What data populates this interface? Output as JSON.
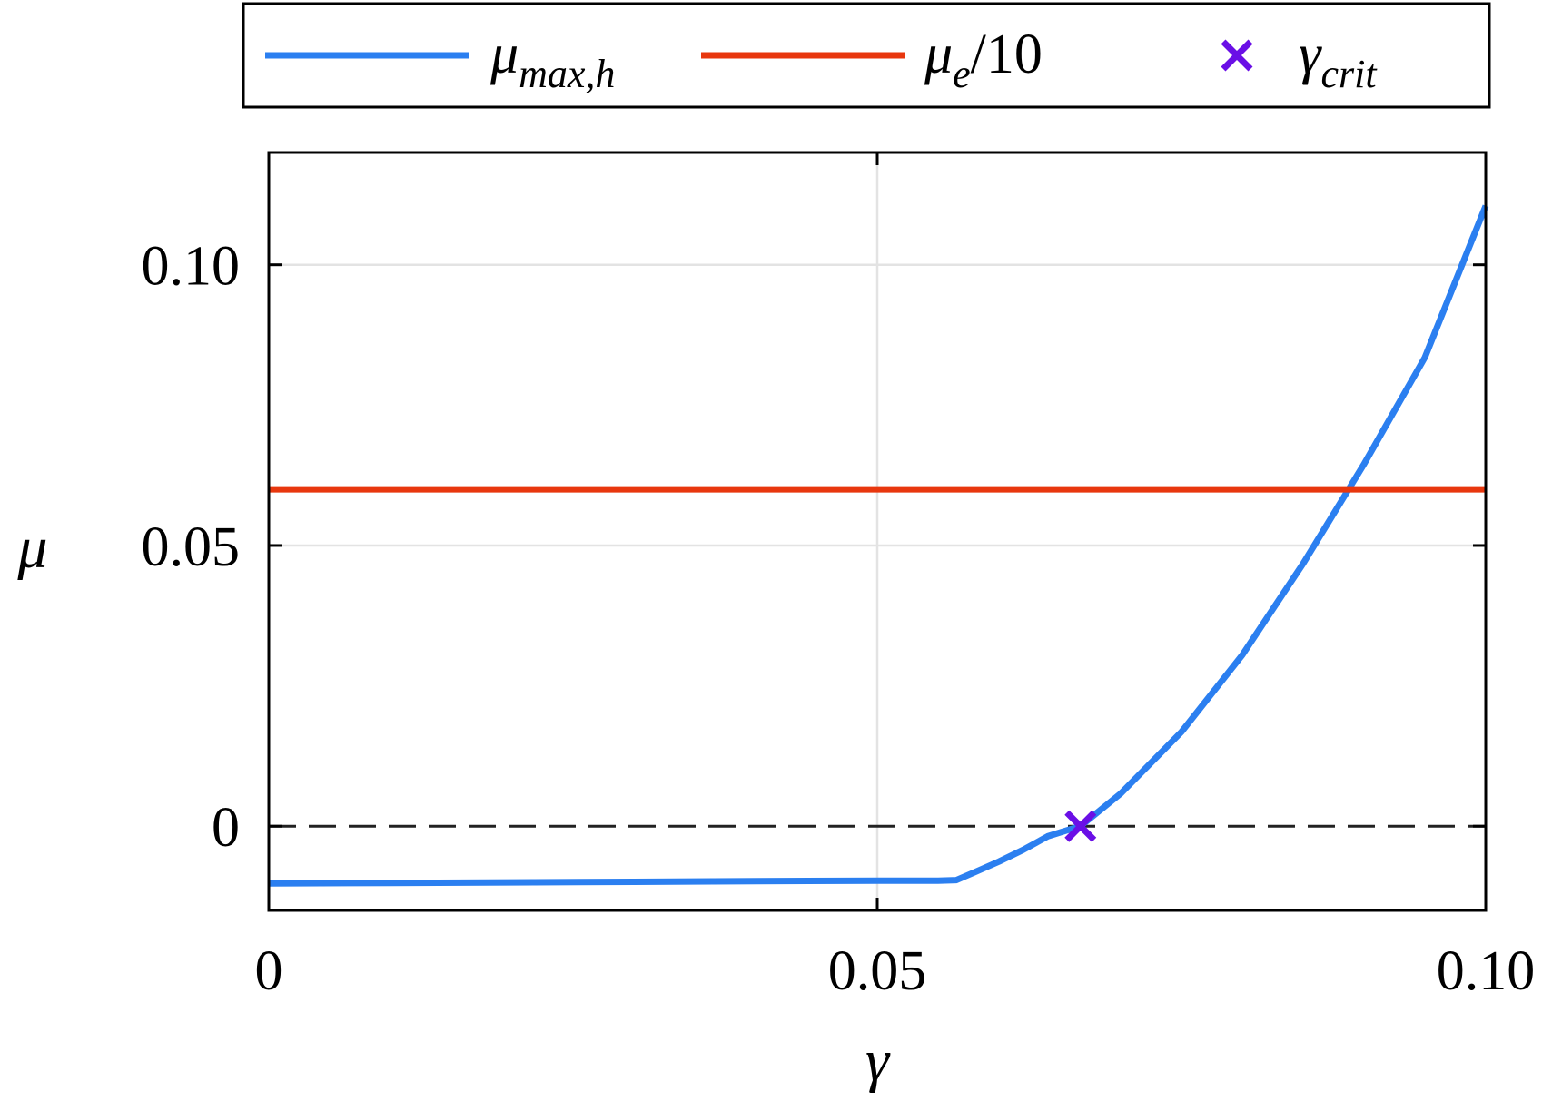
{
  "chart_data": {
    "type": "line",
    "title": "",
    "xlabel": "γ",
    "ylabel": "μ",
    "xlim": [
      0,
      0.1
    ],
    "ylim": [
      -0.015,
      0.12
    ],
    "x_ticks": [
      {
        "value": 0,
        "label": "0"
      },
      {
        "value": 0.05,
        "label": "0.05"
      },
      {
        "value": 0.1,
        "label": "0.10"
      }
    ],
    "y_ticks": [
      {
        "value": 0,
        "label": "0"
      },
      {
        "value": 0.05,
        "label": "0.05"
      },
      {
        "value": 0.1,
        "label": "0.10"
      }
    ],
    "grid": true,
    "legend_position": "top-outside",
    "reference_line": {
      "y": 0,
      "style": "dashed",
      "color": "#222222"
    },
    "series": [
      {
        "key": "mu_max_h",
        "name": "μmax,h",
        "legend_main": "μ",
        "legend_sub": "max,h",
        "color": "#2B7FF0",
        "x": [
          0,
          0.01,
          0.02,
          0.03,
          0.04,
          0.05,
          0.055,
          0.0565,
          0.058,
          0.06,
          0.062,
          0.064,
          0.0667,
          0.07,
          0.075,
          0.08,
          0.085,
          0.09,
          0.095,
          0.1
        ],
        "y": [
          -0.0102,
          -0.0101,
          -0.01,
          -0.0099,
          -0.0098,
          -0.0097,
          -0.0097,
          -0.0096,
          -0.0082,
          -0.0063,
          -0.0042,
          -0.0018,
          0.0,
          0.0058,
          0.0168,
          0.0305,
          0.0468,
          0.0645,
          0.0835,
          0.1105
        ]
      },
      {
        "key": "mu_e_10",
        "name": "μe/10",
        "legend_main": "μ",
        "legend_sub": "e",
        "legend_suffix": "/10",
        "color": "#E8370E",
        "x": [
          0,
          0.1
        ],
        "y": [
          0.06,
          0.06
        ]
      }
    ],
    "markers": [
      {
        "name": "γcrit",
        "legend_main": "γ",
        "legend_sub": "crit",
        "symbol": "x",
        "color": "#6A0FE6",
        "x": 0.0667,
        "y": 0
      }
    ]
  }
}
